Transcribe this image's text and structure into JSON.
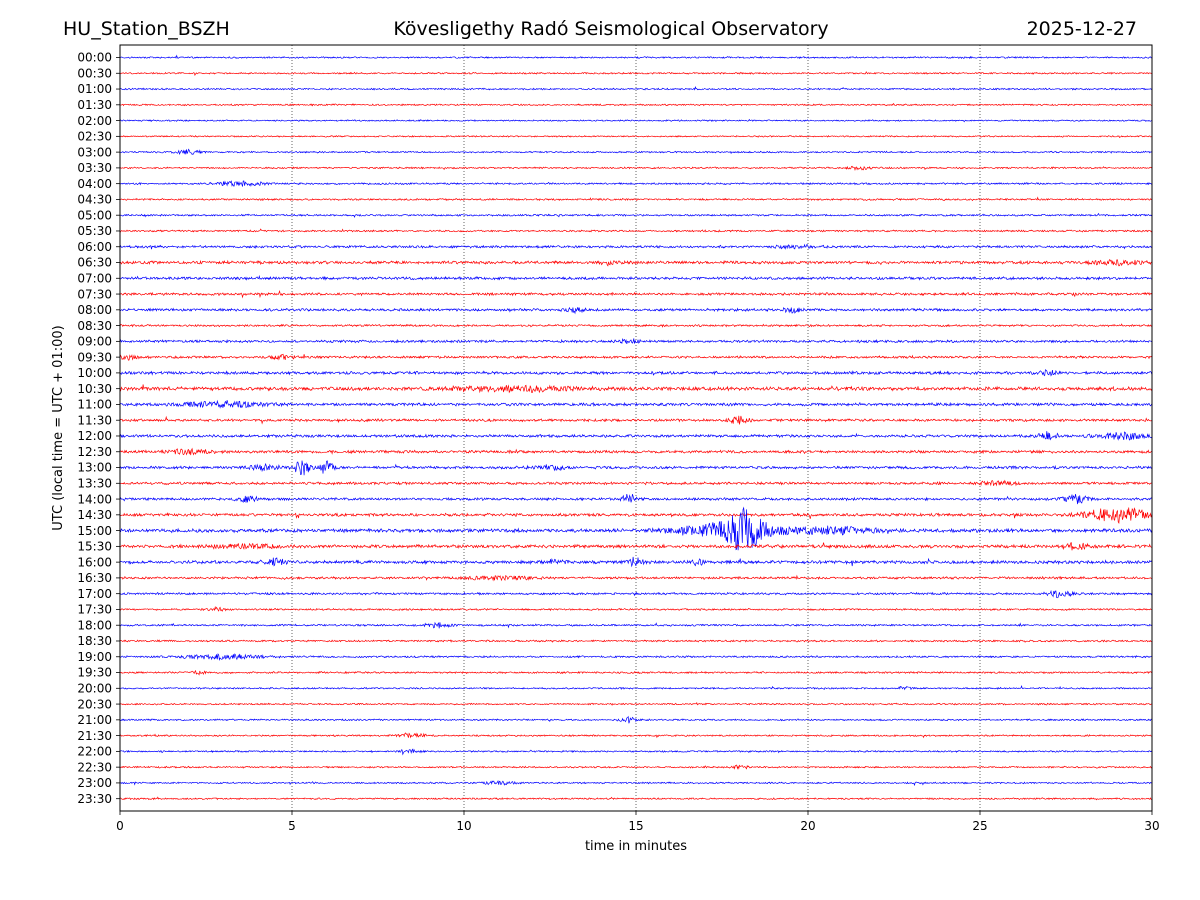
{
  "header": {
    "station": "HU_Station_BSZH",
    "observatory": "Kövesligethy Radó Seismological Observatory",
    "date": "2025-12-27"
  },
  "chart_data": {
    "type": "helicorder",
    "title": "Kövesligethy Radó Seismological Observatory",
    "xlabel": "time in minutes",
    "ylabel": "UTC (local time = UTC + 01:00)",
    "xlim": [
      0,
      30
    ],
    "x_ticks": [
      "0",
      "5",
      "10",
      "15",
      "20",
      "25",
      "30"
    ],
    "x_tick_values": [
      0,
      5,
      10,
      15,
      20,
      25,
      30
    ],
    "vertical_gridlines_at": [
      5,
      10,
      15,
      20,
      25
    ],
    "minutes_per_row": 30,
    "colors": {
      "even_rows": "#0000ff",
      "odd_rows": "#ff0000"
    },
    "row_labels": [
      "00:00",
      "00:30",
      "01:00",
      "01:30",
      "02:00",
      "02:30",
      "03:00",
      "03:30",
      "04:00",
      "04:30",
      "05:00",
      "05:30",
      "06:00",
      "06:30",
      "07:00",
      "07:30",
      "08:00",
      "08:30",
      "09:00",
      "09:30",
      "10:00",
      "10:30",
      "11:00",
      "11:30",
      "12:00",
      "12:30",
      "13:00",
      "13:30",
      "14:00",
      "14:30",
      "15:00",
      "15:30",
      "16:00",
      "16:30",
      "17:00",
      "17:30",
      "18:00",
      "18:30",
      "19:00",
      "19:30",
      "20:00",
      "20:30",
      "21:00",
      "21:30",
      "22:00",
      "22:30",
      "23:00",
      "23:30"
    ],
    "noise_level": [
      0.9,
      0.9,
      0.9,
      0.9,
      0.8,
      0.8,
      0.9,
      0.9,
      1.0,
      1.0,
      1.0,
      1.0,
      1.3,
      1.6,
      1.5,
      1.4,
      1.4,
      1.1,
      1.4,
      1.3,
      1.6,
      2.0,
      1.6,
      1.4,
      1.5,
      1.5,
      1.5,
      1.4,
      1.4,
      1.6,
      1.9,
      1.8,
      1.8,
      1.3,
      1.2,
      1.0,
      1.0,
      1.0,
      1.0,
      1.0,
      0.9,
      0.9,
      0.9,
      0.9,
      0.9,
      0.9,
      0.9,
      0.9
    ],
    "events": [
      {
        "row": "03:00",
        "minute": 2.0,
        "amplitude": 2.0,
        "duration_min": 0.6
      },
      {
        "row": "03:30",
        "minute": 21.5,
        "amplitude": 1.8,
        "duration_min": 0.5
      },
      {
        "row": "04:00",
        "minute": 3.5,
        "amplitude": 2.2,
        "duration_min": 1.2
      },
      {
        "row": "06:00",
        "minute": 19.7,
        "amplitude": 1.6,
        "duration_min": 1.0
      },
      {
        "row": "06:30",
        "minute": 14.2,
        "amplitude": 1.8,
        "duration_min": 0.4
      },
      {
        "row": "06:30",
        "minute": 29.0,
        "amplitude": 1.8,
        "duration_min": 1.5
      },
      {
        "row": "08:00",
        "minute": 13.2,
        "amplitude": 2.0,
        "duration_min": 0.5
      },
      {
        "row": "08:00",
        "minute": 19.6,
        "amplitude": 2.5,
        "duration_min": 0.5
      },
      {
        "row": "09:00",
        "minute": 14.8,
        "amplitude": 2.0,
        "duration_min": 0.5
      },
      {
        "row": "09:30",
        "minute": 0.3,
        "amplitude": 2.2,
        "duration_min": 0.5
      },
      {
        "row": "09:30",
        "minute": 4.7,
        "amplitude": 2.2,
        "duration_min": 0.6
      },
      {
        "row": "10:00",
        "minute": 27.0,
        "amplitude": 2.2,
        "duration_min": 0.5
      },
      {
        "row": "10:30",
        "minute": 11.5,
        "amplitude": 2.2,
        "duration_min": 3.0
      },
      {
        "row": "11:00",
        "minute": 3.0,
        "amplitude": 2.5,
        "duration_min": 2.0
      },
      {
        "row": "11:30",
        "minute": 18.0,
        "amplitude": 3.5,
        "duration_min": 0.5
      },
      {
        "row": "12:00",
        "minute": 27.0,
        "amplitude": 3.5,
        "duration_min": 0.5
      },
      {
        "row": "12:00",
        "minute": 29.2,
        "amplitude": 2.8,
        "duration_min": 1.5
      },
      {
        "row": "12:30",
        "minute": 2.0,
        "amplitude": 2.0,
        "duration_min": 1.2
      },
      {
        "row": "13:00",
        "minute": 5.3,
        "amplitude": 8.5,
        "duration_min": 0.35
      },
      {
        "row": "13:00",
        "minute": 6.0,
        "amplitude": 7.5,
        "duration_min": 0.35
      },
      {
        "row": "13:00",
        "minute": 4.2,
        "amplitude": 2.5,
        "duration_min": 0.8
      },
      {
        "row": "13:00",
        "minute": 12.5,
        "amplitude": 2.0,
        "duration_min": 0.8
      },
      {
        "row": "13:30",
        "minute": 25.5,
        "amplitude": 1.8,
        "duration_min": 1.0
      },
      {
        "row": "14:00",
        "minute": 3.7,
        "amplitude": 3.0,
        "duration_min": 0.5
      },
      {
        "row": "14:00",
        "minute": 14.8,
        "amplitude": 5.0,
        "duration_min": 0.35
      },
      {
        "row": "14:00",
        "minute": 27.8,
        "amplitude": 4.0,
        "duration_min": 0.6
      },
      {
        "row": "14:30",
        "minute": 29.0,
        "amplitude": 7.0,
        "duration_min": 1.6
      },
      {
        "row": "15:00",
        "minute": 18.2,
        "amplitude": 17.0,
        "duration_min": 0.7
      },
      {
        "row": "15:00",
        "minute": 17.8,
        "amplitude": 8.0,
        "duration_min": 2.6
      },
      {
        "row": "15:00",
        "minute": 20.8,
        "amplitude": 3.0,
        "duration_min": 2.0
      },
      {
        "row": "15:30",
        "minute": 27.8,
        "amplitude": 3.0,
        "duration_min": 0.6
      },
      {
        "row": "15:30",
        "minute": 3.5,
        "amplitude": 2.0,
        "duration_min": 1.5
      },
      {
        "row": "16:00",
        "minute": 4.5,
        "amplitude": 3.5,
        "duration_min": 0.5
      },
      {
        "row": "16:00",
        "minute": 12.7,
        "amplitude": 3.0,
        "duration_min": 0.4
      },
      {
        "row": "16:00",
        "minute": 15.0,
        "amplitude": 5.0,
        "duration_min": 0.3
      },
      {
        "row": "16:00",
        "minute": 16.8,
        "amplitude": 3.0,
        "duration_min": 0.3
      },
      {
        "row": "16:30",
        "minute": 11.0,
        "amplitude": 2.0,
        "duration_min": 1.5
      },
      {
        "row": "17:00",
        "minute": 27.3,
        "amplitude": 3.2,
        "duration_min": 0.6
      },
      {
        "row": "17:30",
        "minute": 2.8,
        "amplitude": 1.8,
        "duration_min": 0.4
      },
      {
        "row": "18:00",
        "minute": 9.2,
        "amplitude": 2.5,
        "duration_min": 0.7
      },
      {
        "row": "19:00",
        "minute": 3.0,
        "amplitude": 2.2,
        "duration_min": 2.0
      },
      {
        "row": "19:30",
        "minute": 2.3,
        "amplitude": 1.5,
        "duration_min": 0.4
      },
      {
        "row": "20:00",
        "minute": 22.8,
        "amplitude": 2.0,
        "duration_min": 0.3
      },
      {
        "row": "21:00",
        "minute": 14.8,
        "amplitude": 3.0,
        "duration_min": 0.4
      },
      {
        "row": "21:30",
        "minute": 8.5,
        "amplitude": 1.6,
        "duration_min": 0.8
      },
      {
        "row": "22:00",
        "minute": 8.4,
        "amplitude": 1.6,
        "duration_min": 0.5
      },
      {
        "row": "22:30",
        "minute": 18.0,
        "amplitude": 1.5,
        "duration_min": 0.5
      },
      {
        "row": "23:00",
        "minute": 11.0,
        "amplitude": 1.5,
        "duration_min": 0.8
      }
    ]
  }
}
